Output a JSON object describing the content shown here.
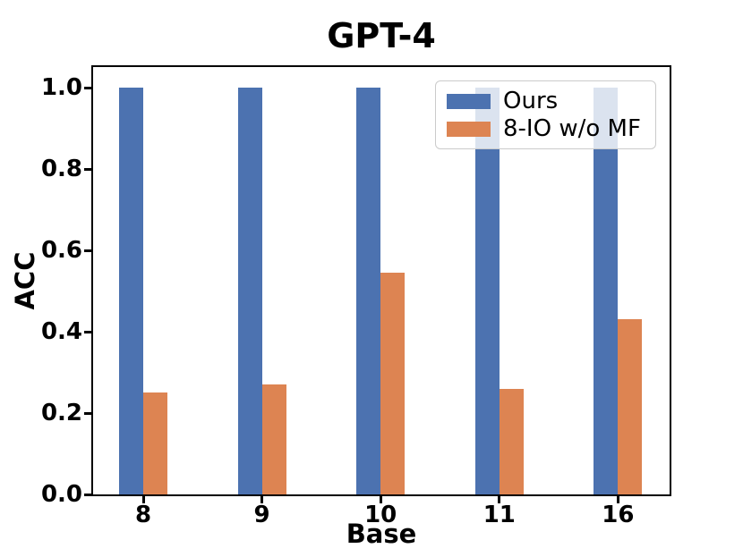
{
  "chart_data": {
    "type": "bar",
    "title": "GPT-4",
    "xlabel": "Base",
    "ylabel": "ACC",
    "categories": [
      "8",
      "9",
      "10",
      "11",
      "16"
    ],
    "series": [
      {
        "name": "Ours",
        "color": "#4C72B0",
        "values": [
          1.0,
          1.0,
          1.0,
          1.0,
          1.0
        ]
      },
      {
        "name": "8-IO w/o MF",
        "color": "#DD8452",
        "values": [
          0.25,
          0.27,
          0.545,
          0.26,
          0.43
        ]
      }
    ],
    "yticks": [
      0.0,
      0.2,
      0.4,
      0.6,
      0.8,
      1.0
    ],
    "ylim": [
      0,
      1.05
    ],
    "grid": false,
    "legend_position": "upper right",
    "spine_color": "#000000",
    "legend_border_color": "#cbcbcb"
  }
}
